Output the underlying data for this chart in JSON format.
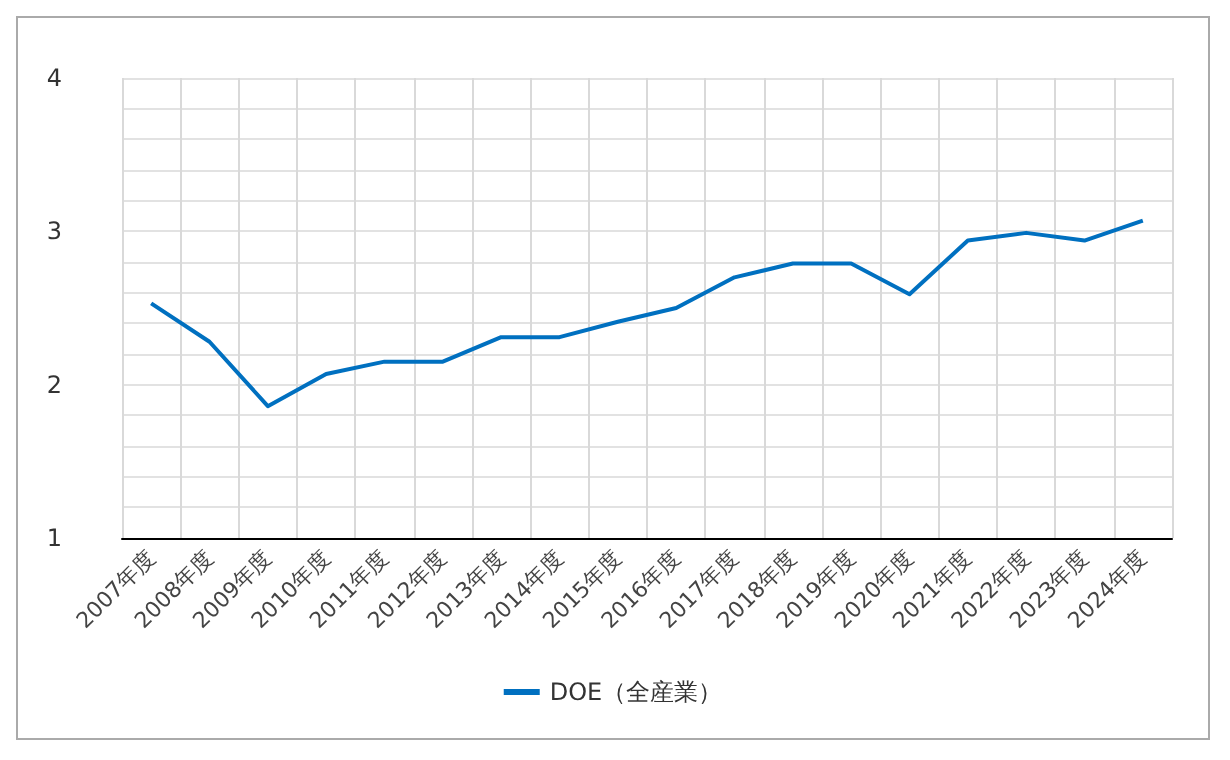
{
  "chart_data": {
    "type": "line",
    "categories": [
      "2007年度",
      "2008年度",
      "2009年度",
      "2010年度",
      "2011年度",
      "2012年度",
      "2013年度",
      "2014年度",
      "2015年度",
      "2016年度",
      "2017年度",
      "2018年度",
      "2019年度",
      "2020年度",
      "2021年度",
      "2022年度",
      "2023年度",
      "2024年度"
    ],
    "series": [
      {
        "name": "DOE（全産業）",
        "color": "#0070c0",
        "values": [
          2.53,
          2.28,
          1.86,
          2.07,
          2.15,
          2.15,
          2.31,
          2.31,
          2.41,
          2.5,
          2.7,
          2.79,
          2.79,
          2.59,
          2.94,
          2.99,
          2.94,
          3.07
        ]
      }
    ],
    "ylim": [
      1,
      4
    ],
    "yticks": [
      1,
      {
        "value": 1.2,
        "label": null
      },
      {
        "value": 1.4,
        "label": null
      },
      {
        "value": 1.6,
        "label": null
      },
      {
        "value": 1.8,
        "label": null
      },
      2,
      {
        "value": 2.2,
        "label": null
      },
      {
        "value": 2.4,
        "label": null
      },
      {
        "value": 2.6,
        "label": null
      },
      {
        "value": 2.8,
        "label": null
      },
      3,
      {
        "value": 3.2,
        "label": null
      },
      {
        "value": 3.4,
        "label": null
      },
      {
        "value": 3.6,
        "label": null
      },
      {
        "value": 3.8,
        "label": null
      },
      4
    ],
    "grid": true,
    "legend": "bottom",
    "marker": "none",
    "line_style": "solid"
  }
}
